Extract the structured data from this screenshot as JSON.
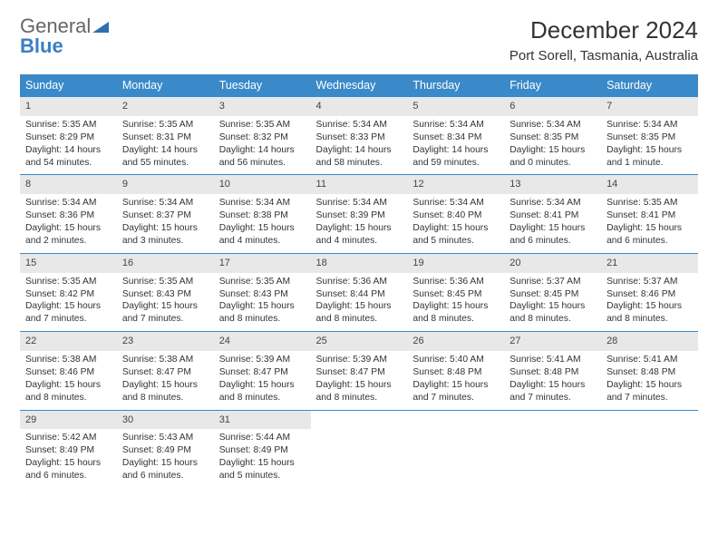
{
  "logo": {
    "word1": "General",
    "word2": "Blue"
  },
  "colors": {
    "header_bg": "#3a8ac9",
    "header_fg": "#ffffff",
    "daynum_bg": "#e8e8e8",
    "border": "#3a8ac9",
    "logo_blue": "#3a7fc4",
    "text": "#333333"
  },
  "title": "December 2024",
  "location": "Port Sorell, Tasmania, Australia",
  "weekdays": [
    "Sunday",
    "Monday",
    "Tuesday",
    "Wednesday",
    "Thursday",
    "Friday",
    "Saturday"
  ],
  "days": [
    {
      "n": "1",
      "sr": "5:35 AM",
      "ss": "8:29 PM",
      "dl": "14 hours and 54 minutes."
    },
    {
      "n": "2",
      "sr": "5:35 AM",
      "ss": "8:31 PM",
      "dl": "14 hours and 55 minutes."
    },
    {
      "n": "3",
      "sr": "5:35 AM",
      "ss": "8:32 PM",
      "dl": "14 hours and 56 minutes."
    },
    {
      "n": "4",
      "sr": "5:34 AM",
      "ss": "8:33 PM",
      "dl": "14 hours and 58 minutes."
    },
    {
      "n": "5",
      "sr": "5:34 AM",
      "ss": "8:34 PM",
      "dl": "14 hours and 59 minutes."
    },
    {
      "n": "6",
      "sr": "5:34 AM",
      "ss": "8:35 PM",
      "dl": "15 hours and 0 minutes."
    },
    {
      "n": "7",
      "sr": "5:34 AM",
      "ss": "8:35 PM",
      "dl": "15 hours and 1 minute."
    },
    {
      "n": "8",
      "sr": "5:34 AM",
      "ss": "8:36 PM",
      "dl": "15 hours and 2 minutes."
    },
    {
      "n": "9",
      "sr": "5:34 AM",
      "ss": "8:37 PM",
      "dl": "15 hours and 3 minutes."
    },
    {
      "n": "10",
      "sr": "5:34 AM",
      "ss": "8:38 PM",
      "dl": "15 hours and 4 minutes."
    },
    {
      "n": "11",
      "sr": "5:34 AM",
      "ss": "8:39 PM",
      "dl": "15 hours and 4 minutes."
    },
    {
      "n": "12",
      "sr": "5:34 AM",
      "ss": "8:40 PM",
      "dl": "15 hours and 5 minutes."
    },
    {
      "n": "13",
      "sr": "5:34 AM",
      "ss": "8:41 PM",
      "dl": "15 hours and 6 minutes."
    },
    {
      "n": "14",
      "sr": "5:35 AM",
      "ss": "8:41 PM",
      "dl": "15 hours and 6 minutes."
    },
    {
      "n": "15",
      "sr": "5:35 AM",
      "ss": "8:42 PM",
      "dl": "15 hours and 7 minutes."
    },
    {
      "n": "16",
      "sr": "5:35 AM",
      "ss": "8:43 PM",
      "dl": "15 hours and 7 minutes."
    },
    {
      "n": "17",
      "sr": "5:35 AM",
      "ss": "8:43 PM",
      "dl": "15 hours and 8 minutes."
    },
    {
      "n": "18",
      "sr": "5:36 AM",
      "ss": "8:44 PM",
      "dl": "15 hours and 8 minutes."
    },
    {
      "n": "19",
      "sr": "5:36 AM",
      "ss": "8:45 PM",
      "dl": "15 hours and 8 minutes."
    },
    {
      "n": "20",
      "sr": "5:37 AM",
      "ss": "8:45 PM",
      "dl": "15 hours and 8 minutes."
    },
    {
      "n": "21",
      "sr": "5:37 AM",
      "ss": "8:46 PM",
      "dl": "15 hours and 8 minutes."
    },
    {
      "n": "22",
      "sr": "5:38 AM",
      "ss": "8:46 PM",
      "dl": "15 hours and 8 minutes."
    },
    {
      "n": "23",
      "sr": "5:38 AM",
      "ss": "8:47 PM",
      "dl": "15 hours and 8 minutes."
    },
    {
      "n": "24",
      "sr": "5:39 AM",
      "ss": "8:47 PM",
      "dl": "15 hours and 8 minutes."
    },
    {
      "n": "25",
      "sr": "5:39 AM",
      "ss": "8:47 PM",
      "dl": "15 hours and 8 minutes."
    },
    {
      "n": "26",
      "sr": "5:40 AM",
      "ss": "8:48 PM",
      "dl": "15 hours and 7 minutes."
    },
    {
      "n": "27",
      "sr": "5:41 AM",
      "ss": "8:48 PM",
      "dl": "15 hours and 7 minutes."
    },
    {
      "n": "28",
      "sr": "5:41 AM",
      "ss": "8:48 PM",
      "dl": "15 hours and 7 minutes."
    },
    {
      "n": "29",
      "sr": "5:42 AM",
      "ss": "8:49 PM",
      "dl": "15 hours and 6 minutes."
    },
    {
      "n": "30",
      "sr": "5:43 AM",
      "ss": "8:49 PM",
      "dl": "15 hours and 6 minutes."
    },
    {
      "n": "31",
      "sr": "5:44 AM",
      "ss": "8:49 PM",
      "dl": "15 hours and 5 minutes."
    }
  ],
  "labels": {
    "sunrise": "Sunrise:",
    "sunset": "Sunset:",
    "daylight": "Daylight:"
  }
}
